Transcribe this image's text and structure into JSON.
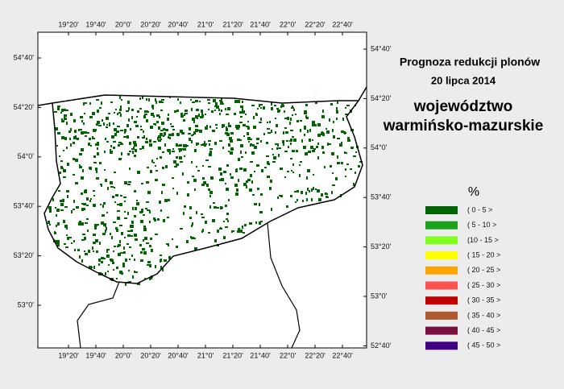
{
  "title": "Prognoza redukcji plonów",
  "date": "20 lipca 2014",
  "region_line1": "województwo",
  "region_line2": "warmińsko-mazurskie",
  "longitude_labels": [
    "19°20'",
    "19°40'",
    "20°0'",
    "20°20'",
    "20°40'",
    "21°0'",
    "21°20'",
    "21°40'",
    "22°0'",
    "22°20'",
    "22°40'"
  ],
  "left_latitude_labels": [
    "54°40'",
    "54°20'",
    "54°0'",
    "53°40'",
    "53°20'",
    "53°0'"
  ],
  "right_latitude_labels": [
    "54°40'",
    "54°20'",
    "54°0'",
    "53°40'",
    "53°20'",
    "53°0'",
    "52°40'"
  ],
  "legend": {
    "title": "%",
    "items": [
      {
        "label": "( 0 - 5 >",
        "color": "#006400"
      },
      {
        "label": "( 5 - 10 >",
        "color": "#1aa31a"
      },
      {
        "label": "(10 - 15 >",
        "color": "#80ff20"
      },
      {
        "label": "( 15 - 20 >",
        "color": "#ffff00"
      },
      {
        "label": "( 20 - 25 >",
        "color": "#ffa500"
      },
      {
        "label": "( 25 - 30 >",
        "color": "#ff5050"
      },
      {
        "label": "( 30 - 35 >",
        "color": "#c00000"
      },
      {
        "label": "( 35 - 40 >",
        "color": "#b05a30"
      },
      {
        "label": "( 40 - 45 >",
        "color": "#7a1040"
      },
      {
        "label": "( 45 - 50 >",
        "color": "#400080"
      }
    ]
  }
}
